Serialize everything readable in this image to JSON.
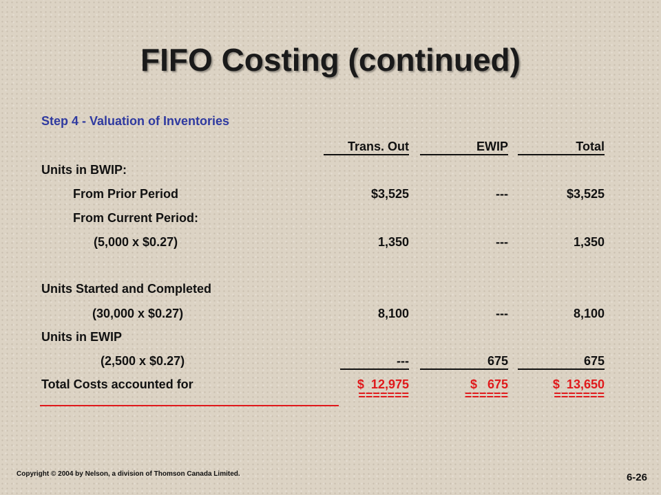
{
  "title": "FIFO Costing (continued)",
  "step_heading": "Step 4 - Valuation of Inventories",
  "headers": {
    "trans_out": "Trans. Out",
    "ewip": "EWIP",
    "total": "Total"
  },
  "rows": {
    "units_bwip": "Units in BWIP:",
    "from_prior": {
      "label": "From Prior Period",
      "trans_out": "$3,525",
      "ewip": "---",
      "total": "$3,525"
    },
    "from_current": "From Current Period:",
    "current_calc": {
      "label": "(5,000 x $0.27)",
      "trans_out": "1,350",
      "ewip": "---",
      "total": "1,350"
    },
    "started_completed": "Units Started and Completed",
    "started_calc": {
      "label": "(30,000 x $0.27)",
      "trans_out": "8,100",
      "ewip": "---",
      "total": "8,100"
    },
    "units_ewip": "Units in EWIP",
    "ewip_calc": {
      "label": "(2,500 x $0.27)",
      "trans_out": "---",
      "ewip": "675",
      "total": "675"
    },
    "total_costs": {
      "label": "Total Costs accounted for",
      "trans_out": "$  12,975",
      "ewip": "$   675",
      "total": "$  13,650"
    },
    "equals": {
      "trans_out": "=======",
      "ewip": "======",
      "total": "======="
    }
  },
  "colors": {
    "accent_blue": "#2f3aa0",
    "total_red": "#e0191b"
  },
  "footer": {
    "copyright": "Copyright © 2004 by Nelson, a division of Thomson Canada Limited.",
    "page_number": "6-26"
  }
}
